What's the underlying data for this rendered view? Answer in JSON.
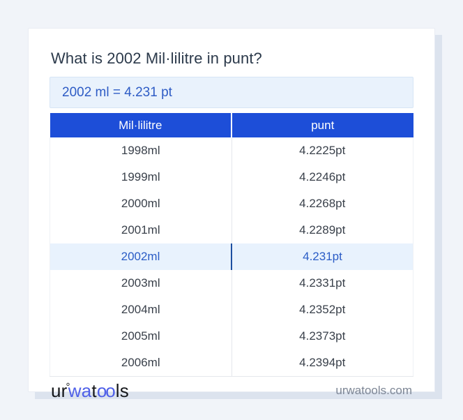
{
  "title": "What is 2002 Mil·lilitre in punt?",
  "result": "2002 ml = 4.231 pt",
  "table": {
    "headers": [
      "Mil·lilitre",
      "punt"
    ],
    "rows": [
      {
        "ml": "1998ml",
        "pt": "4.2225pt",
        "highlight": false
      },
      {
        "ml": "1999ml",
        "pt": "4.2246pt",
        "highlight": false
      },
      {
        "ml": "2000ml",
        "pt": "4.2268pt",
        "highlight": false
      },
      {
        "ml": "2001ml",
        "pt": "4.2289pt",
        "highlight": false
      },
      {
        "ml": "2002ml",
        "pt": "4.231pt",
        "highlight": true
      },
      {
        "ml": "2003ml",
        "pt": "4.2331pt",
        "highlight": false
      },
      {
        "ml": "2004ml",
        "pt": "4.2352pt",
        "highlight": false
      },
      {
        "ml": "2005ml",
        "pt": "4.2373pt",
        "highlight": false
      },
      {
        "ml": "2006ml",
        "pt": "4.2394pt",
        "highlight": false
      }
    ]
  },
  "footer": {
    "logo": {
      "prefix": "ur",
      "ring": "°",
      "mid": "wa",
      "t": "t",
      "glasses": "oo",
      "suffix": "ls"
    },
    "website": "urwatools.com"
  },
  "colors": {
    "page_background": "#f1f4f9",
    "card_background": "#ffffff",
    "card_shadow": "#dce3ee",
    "table_header_background": "#1d4ed8",
    "table_header_text": "#ffffff",
    "result_background": "#e9f2fc",
    "result_text": "#2e5cc5",
    "highlight_row_background": "#e8f2fd",
    "highlight_row_text": "#2a5cc6",
    "title_text": "#2c3a4b",
    "row_text": "#3a414b",
    "website_text": "#7d8695",
    "logo_dark": "#15171b",
    "logo_blue": "#4f60e8"
  }
}
